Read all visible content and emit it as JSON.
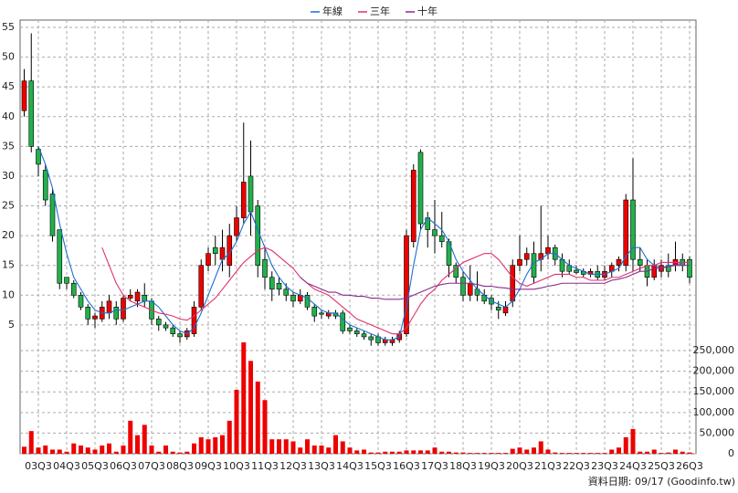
{
  "chart_data": {
    "type": "candlestick",
    "categories": [
      null,
      null,
      "03Q3",
      null,
      null,
      null,
      "04Q3",
      null,
      null,
      null,
      "05Q3",
      null,
      null,
      null,
      "06Q3",
      null,
      null,
      null,
      "07Q3",
      null,
      null,
      null,
      "08Q3",
      null,
      null,
      null,
      "09Q3",
      null,
      null,
      null,
      "10Q3",
      null,
      null,
      null,
      "11Q3",
      null,
      null,
      null,
      "12Q3",
      null,
      null,
      null,
      "13Q3",
      null,
      null,
      null,
      "14Q3",
      null,
      null,
      null,
      "15Q3",
      null,
      null,
      null,
      "16Q3",
      null,
      null,
      null,
      "17Q3",
      null,
      null,
      null,
      "18Q3",
      null,
      null,
      null,
      "19Q3",
      null,
      null,
      null,
      "20Q3",
      null,
      null,
      null,
      "21Q3",
      null,
      null,
      null,
      "22Q3",
      null,
      null,
      null,
      "23Q3",
      null,
      null,
      null,
      "24Q3",
      null,
      null,
      null,
      "25Q3",
      null,
      null,
      null,
      "26Q3"
    ],
    "open": [
      41,
      46,
      34.5,
      31,
      27,
      21,
      13,
      12,
      10,
      8,
      6,
      6,
      7,
      8,
      6,
      9.5,
      9,
      10,
      9,
      6,
      5,
      4.5,
      3.5,
      3,
      3.5,
      8,
      15,
      18,
      16,
      15,
      20,
      23,
      30,
      25,
      16,
      13,
      12,
      11,
      10,
      9,
      10,
      8,
      7,
      6.5,
      7,
      7,
      4.5,
      4,
      3.5,
      3,
      3,
      2,
      2,
      2.5,
      3.5,
      19,
      34,
      23,
      21,
      20,
      19,
      15,
      13,
      10,
      11,
      10,
      9.5,
      8,
      7,
      9,
      15,
      16,
      17,
      16,
      17,
      18,
      16,
      15,
      14.2,
      14,
      13.5,
      14,
      13,
      14,
      15,
      15,
      26,
      16,
      15,
      13,
      14,
      15,
      15,
      16,
      16
    ],
    "high": [
      48,
      54,
      35,
      32,
      28,
      21,
      13,
      12.5,
      10.5,
      8.5,
      7,
      9,
      10,
      9,
      10,
      11,
      11,
      12,
      9.5,
      6.5,
      5.5,
      5,
      4,
      4.5,
      9,
      16,
      18,
      20,
      21,
      22,
      25,
      39,
      36,
      26,
      18,
      14,
      13,
      12,
      10.5,
      11,
      10.5,
      8.5,
      7.5,
      7.5,
      7.5,
      7.5,
      5,
      4.5,
      4,
      3.5,
      3.5,
      3,
      3,
      4,
      21,
      32,
      34.5,
      24,
      26,
      24,
      19.5,
      15.5,
      14,
      15,
      14,
      11,
      10,
      9,
      9,
      16,
      20,
      18,
      19,
      25,
      20,
      18.5,
      17,
      16,
      15,
      14.5,
      14.5,
      15,
      15,
      15.5,
      16.5,
      27,
      33,
      18,
      16,
      16,
      16,
      17,
      19,
      17,
      16.5
    ],
    "low": [
      40,
      34,
      30,
      25,
      19,
      11,
      11,
      9.5,
      7.5,
      5,
      4.5,
      5.5,
      6,
      5,
      5.5,
      9,
      8,
      8,
      5,
      4,
      4,
      3,
      2,
      2.5,
      3,
      7.5,
      14,
      15,
      14,
      13,
      19,
      22,
      20,
      13,
      11,
      9,
      10,
      9,
      8,
      8.5,
      7.5,
      5.5,
      6,
      6,
      6,
      3.5,
      3.5,
      3,
      2.5,
      1.5,
      1.5,
      1.5,
      1.5,
      2,
      3,
      18,
      21,
      18,
      17,
      18,
      13,
      12,
      9,
      9,
      9,
      8.5,
      7.5,
      6,
      6.5,
      8,
      14,
      15,
      12,
      14,
      16,
      15,
      13,
      13.5,
      13.5,
      13,
      13,
      12.5,
      12.5,
      13,
      14,
      14,
      14,
      14,
      11.5,
      12.5,
      13,
      13,
      14,
      14,
      12
    ],
    "close": [
      46,
      35,
      32,
      26,
      20,
      12,
      12,
      10,
      8,
      6,
      6.5,
      8,
      9,
      6,
      9.5,
      10,
      10.5,
      9,
      6,
      5,
      4.5,
      3.5,
      3,
      4,
      8,
      15,
      17,
      17,
      18,
      20,
      23,
      29,
      24,
      15,
      13,
      11,
      11,
      10,
      9,
      10,
      8,
      6.5,
      6.8,
      7,
      6.5,
      4,
      4,
      3.5,
      3,
      2.5,
      2,
      2.5,
      2.5,
      3.5,
      20,
      31,
      22,
      21,
      20,
      19,
      15,
      13,
      10,
      12,
      10,
      9,
      8.5,
      7.5,
      8,
      15,
      16,
      17,
      13,
      17,
      18,
      16,
      14,
      14,
      13.8,
      13.5,
      14,
      13,
      14,
      15,
      16,
      26,
      16,
      15,
      13,
      15,
      15,
      14,
      16,
      15,
      13
    ],
    "up_color": "#ee0000",
    "down_color": "#22b14c",
    "volume": {
      "color": "#ee0000",
      "values": [
        17000,
        55000,
        15000,
        20000,
        10000,
        10000,
        5000,
        25000,
        20000,
        15000,
        10000,
        20000,
        25000,
        5000,
        20000,
        80000,
        45000,
        70000,
        20000,
        5000,
        20000,
        5000,
        3000,
        5000,
        25000,
        40000,
        35000,
        40000,
        45000,
        80000,
        155000,
        270000,
        225000,
        175000,
        130000,
        35000,
        35000,
        35000,
        30000,
        15000,
        35000,
        20000,
        20000,
        15000,
        45000,
        30000,
        15000,
        8000,
        10000,
        3000,
        3000,
        5000,
        5000,
        5000,
        8000,
        8000,
        8000,
        8000,
        15000,
        5000,
        5000,
        3000,
        3000,
        2000,
        2000,
        2000,
        2000,
        2000,
        2000,
        12000,
        15000,
        10000,
        15000,
        30000,
        10000,
        3000,
        2000,
        2000,
        2000,
        2000,
        2000,
        2000,
        2000,
        10000,
        15000,
        40000,
        60000,
        5000,
        5000,
        10000,
        2000,
        3000,
        10000,
        5000,
        3000
      ]
    },
    "series": [
      {
        "name": "年線",
        "color": "#1a6fd0",
        "values": [
          null,
          null,
          35,
          32,
          28,
          22,
          17,
          13,
          11,
          9,
          7.5,
          7,
          7,
          7.5,
          7.5,
          8,
          8.5,
          9,
          9,
          8,
          6.5,
          5,
          4,
          3.5,
          4.5,
          7,
          10,
          13,
          16,
          17,
          19,
          22,
          24,
          21,
          18,
          15,
          13,
          11.5,
          10.5,
          10,
          9.5,
          8.5,
          7.5,
          7,
          7,
          6,
          5,
          4.5,
          4,
          3.5,
          3,
          2.5,
          2.5,
          3,
          8,
          15,
          21,
          23,
          22,
          21,
          19,
          16,
          14,
          12.5,
          11,
          10,
          9,
          8.5,
          8,
          9,
          11,
          13.5,
          15.5,
          16,
          17,
          17,
          16,
          15,
          14.5,
          14,
          13.5,
          13.5,
          13.5,
          14,
          14.5,
          16.5,
          18,
          18,
          16,
          15,
          14.5,
          15,
          15,
          15.5,
          15.5
        ]
      },
      {
        "name": "三年",
        "color": "#e0306e",
        "values": [
          null,
          null,
          null,
          null,
          null,
          null,
          null,
          null,
          null,
          null,
          null,
          18,
          15,
          12,
          10,
          9,
          8.5,
          8,
          7.5,
          7,
          6.8,
          6.5,
          6,
          5.8,
          6.5,
          7.5,
          8.5,
          9.5,
          11,
          12.5,
          14,
          15.5,
          16.5,
          17.5,
          18,
          17.5,
          16.5,
          15.5,
          14.5,
          13,
          12,
          11,
          10.5,
          10,
          9,
          8,
          7,
          6,
          5.5,
          5,
          4.5,
          4,
          3.5,
          3.5,
          4.5,
          6.5,
          8.5,
          10,
          11,
          12.5,
          13.5,
          14.5,
          15.5,
          16,
          16.5,
          17,
          17,
          16,
          14.5,
          13,
          12,
          11.5,
          12,
          12.5,
          13,
          13.5,
          13.5,
          13.5,
          13,
          13,
          12.5,
          12.5,
          12.5,
          13,
          13,
          13.5,
          14,
          14.5,
          15,
          15,
          15.5,
          15.5,
          15.5,
          15.5,
          15.5
        ]
      },
      {
        "name": "十年",
        "color": "#8b2a8b",
        "values": [
          null,
          null,
          null,
          null,
          null,
          null,
          null,
          null,
          null,
          null,
          null,
          null,
          null,
          null,
          null,
          null,
          null,
          null,
          null,
          null,
          null,
          null,
          null,
          null,
          null,
          null,
          null,
          null,
          null,
          null,
          null,
          null,
          null,
          null,
          null,
          null,
          null,
          null,
          null,
          13,
          12,
          11.5,
          11,
          10.5,
          10.5,
          10,
          10,
          9.8,
          9.8,
          9.5,
          9.5,
          9.3,
          9.3,
          9.3,
          9.5,
          10,
          10.5,
          11,
          11.5,
          11.8,
          12,
          12,
          12,
          12,
          11.8,
          11.5,
          11.5,
          11.3,
          11.2,
          11,
          11,
          11,
          11,
          11.2,
          11.5,
          11.7,
          12,
          12,
          12,
          12,
          12,
          12,
          12,
          12.5,
          12.7,
          13,
          13.5,
          14,
          14,
          14.5,
          14.5,
          14.8,
          15,
          15,
          15
        ]
      }
    ],
    "ylim": [
      1.3,
      55
    ],
    "yticks": [
      5,
      10,
      15,
      20,
      25,
      30,
      35,
      40,
      45,
      50,
      55
    ],
    "y2lim": [
      0,
      270000
    ],
    "y2ticks": [
      0,
      {
        "value": 50000,
        "label": "50,000"
      },
      {
        "value": 100000,
        "label": "100,000"
      },
      {
        "value": 150000,
        "label": "150,000"
      },
      {
        "value": 200000,
        "label": "200,000"
      },
      {
        "value": 250000,
        "label": "250,000"
      }
    ],
    "grid": true,
    "legend": "top",
    "footnote": "資料日期: 09/17 (Goodinfo.tw)"
  }
}
